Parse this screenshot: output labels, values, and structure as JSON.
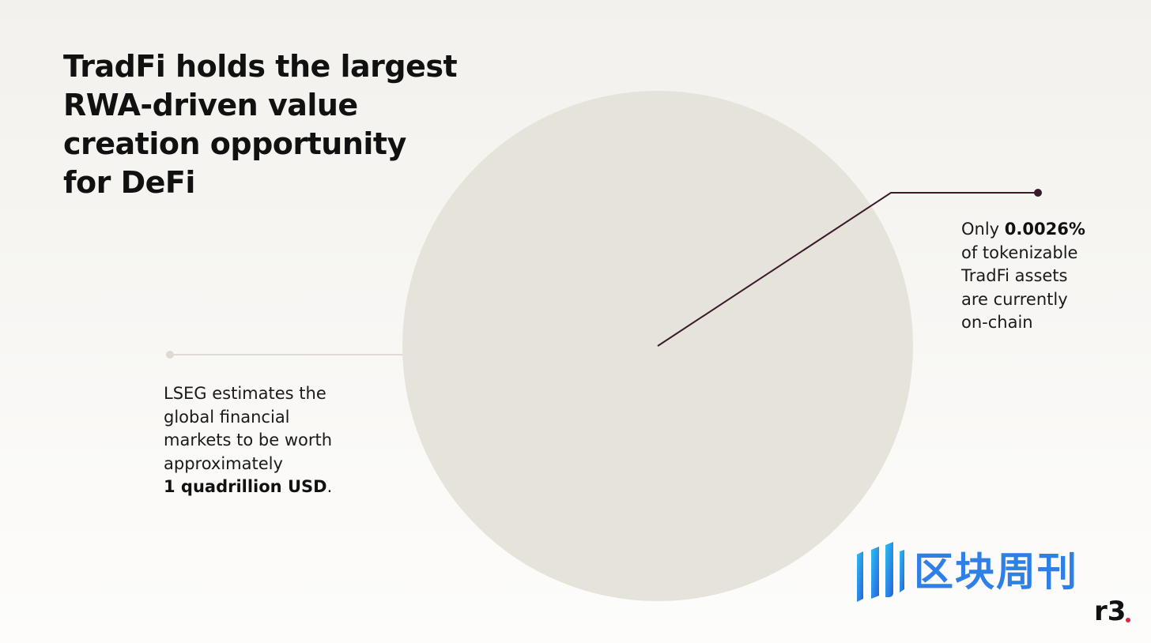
{
  "title": {
    "lines": [
      "TradFi holds the largest",
      "RWA-driven value",
      "creation opportunity",
      "for DeFi"
    ]
  },
  "left_callout": {
    "lines": [
      "LSEG estimates the",
      "global financial",
      "markets to be worth",
      "approximately"
    ],
    "bold_value": "1 quadrillion USD",
    "suffix": "."
  },
  "right_callout": {
    "prefix": "Only ",
    "bold_value": "0.0026%",
    "lines": [
      "of tokenizable",
      "TradFi assets",
      "are currently",
      "on-chain"
    ]
  },
  "watermark": {
    "text": "区块周刊"
  },
  "logo": {
    "text": "r3"
  },
  "colors": {
    "circle": "#e6e3db",
    "leader_line_right": "#3a1a2b",
    "leader_line_left": "#dedbd4",
    "watermark": "#2e7fe6",
    "logo_dot": "#d7263d"
  }
}
